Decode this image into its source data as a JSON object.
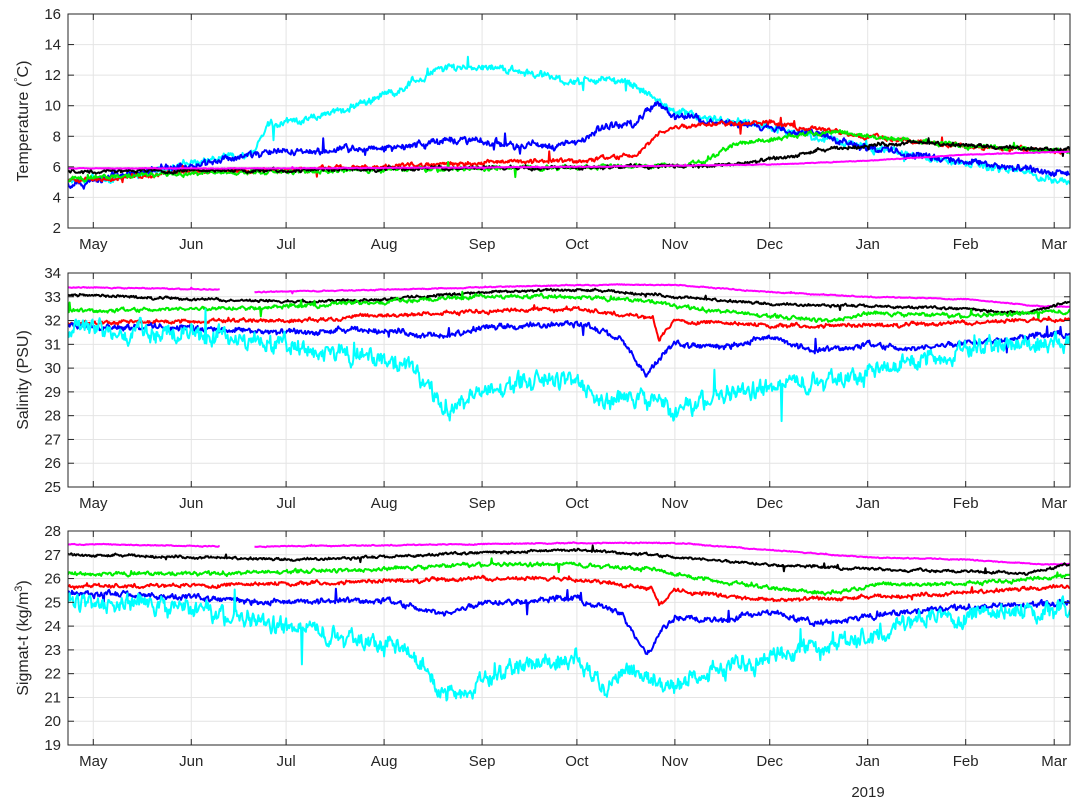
{
  "figure": {
    "year_label": "2019"
  },
  "time_axis": {
    "start": "2018-04-23",
    "end": "2019-03-06",
    "ticks": [
      {
        "date": "2018-05-01",
        "label": "May"
      },
      {
        "date": "2018-06-01",
        "label": "Jun"
      },
      {
        "date": "2018-07-01",
        "label": "Jul"
      },
      {
        "date": "2018-08-01",
        "label": "Aug"
      },
      {
        "date": "2018-09-01",
        "label": "Sep"
      },
      {
        "date": "2018-10-01",
        "label": "Oct"
      },
      {
        "date": "2018-11-01",
        "label": "Nov"
      },
      {
        "date": "2018-12-01",
        "label": "Dec"
      },
      {
        "date": "2019-01-01",
        "label": "Jan"
      },
      {
        "date": "2019-02-01",
        "label": "Feb"
      },
      {
        "date": "2019-03-01",
        "label": "Mar"
      }
    ]
  },
  "colors": {
    "magenta": "#ff00ff",
    "black": "#000000",
    "green": "#00ee00",
    "red": "#ff0000",
    "blue": "#0000ff",
    "cyan": "#00ffff"
  },
  "chart_data": [
    {
      "type": "line",
      "ylabel_text": "Temperature (",
      "ylabel_degree": "°",
      "ylabel_unit": "C)",
      "ylim": [
        2,
        16
      ],
      "yticks": [
        2,
        4,
        6,
        8,
        10,
        12,
        14,
        16
      ],
      "grid": true,
      "series": [
        {
          "color": "cyan",
          "noise": 0.35,
          "x": [
            "2018-04-23",
            "2018-05-15",
            "2018-06-01",
            "2018-06-20",
            "2018-06-25",
            "2018-07-10",
            "2018-07-25",
            "2018-08-05",
            "2018-08-20",
            "2018-09-01",
            "2018-09-15",
            "2018-10-01",
            "2018-10-10",
            "2018-10-20",
            "2018-11-01",
            "2018-11-15",
            "2018-12-01",
            "2018-12-15",
            "2019-01-01",
            "2019-01-15",
            "2019-02-01",
            "2019-02-15",
            "2019-03-06"
          ],
          "y": [
            5.0,
            5.4,
            6.3,
            6.8,
            8.8,
            9.2,
            10.2,
            11.0,
            12.5,
            12.6,
            12.2,
            11.5,
            11.8,
            11.3,
            9.5,
            9.0,
            8.6,
            8.0,
            7.3,
            6.8,
            6.2,
            5.8,
            5.0
          ]
        },
        {
          "color": "blue",
          "noise": 0.35,
          "x": [
            "2018-04-23",
            "2018-05-15",
            "2018-06-01",
            "2018-06-20",
            "2018-07-01",
            "2018-08-01",
            "2018-08-25",
            "2018-09-01",
            "2018-09-20",
            "2018-10-01",
            "2018-10-10",
            "2018-10-20",
            "2018-10-27",
            "2018-11-01",
            "2018-11-20",
            "2018-12-15",
            "2019-01-01",
            "2019-01-15",
            "2019-02-01",
            "2019-02-20",
            "2019-03-06"
          ],
          "y": [
            4.9,
            5.6,
            6.2,
            6.8,
            7.0,
            7.2,
            7.8,
            7.6,
            7.4,
            7.5,
            8.6,
            9.0,
            10.2,
            9.3,
            8.8,
            8.3,
            7.3,
            6.8,
            6.4,
            5.8,
            5.6
          ]
        },
        {
          "color": "red",
          "noise": 0.22,
          "x": [
            "2018-04-23",
            "2018-06-01",
            "2018-07-01",
            "2018-08-01",
            "2018-09-01",
            "2018-10-01",
            "2018-10-20",
            "2018-10-27",
            "2018-11-01",
            "2018-11-15",
            "2018-12-01",
            "2019-01-01",
            "2019-02-01",
            "2019-03-06"
          ],
          "y": [
            5.0,
            5.7,
            5.8,
            6.0,
            6.3,
            6.4,
            6.8,
            8.2,
            8.6,
            8.9,
            8.9,
            8.0,
            7.3,
            7.0
          ]
        },
        {
          "color": "green",
          "noise": 0.22,
          "x": [
            "2018-04-23",
            "2018-06-01",
            "2018-07-01",
            "2018-08-01",
            "2018-09-01",
            "2018-10-01",
            "2018-10-25",
            "2018-11-10",
            "2018-11-20",
            "2018-12-01",
            "2018-12-15",
            "2019-01-01",
            "2019-02-01",
            "2019-03-06"
          ],
          "y": [
            5.2,
            5.6,
            5.7,
            5.8,
            5.9,
            6.0,
            6.1,
            6.3,
            7.5,
            7.8,
            8.3,
            8.0,
            7.4,
            7.0
          ]
        },
        {
          "color": "black",
          "noise": 0.18,
          "x": [
            "2018-04-23",
            "2018-07-01",
            "2018-10-01",
            "2018-11-15",
            "2018-11-25",
            "2018-12-05",
            "2018-12-15",
            "2019-01-01",
            "2019-01-15",
            "2019-02-01",
            "2019-03-06"
          ],
          "y": [
            5.7,
            5.8,
            6.0,
            6.1,
            6.3,
            6.6,
            7.0,
            7.4,
            7.6,
            7.4,
            7.1
          ]
        },
        {
          "color": "magenta",
          "noise": 0.03,
          "x": [
            "2018-04-23",
            "2018-07-01",
            "2018-10-01",
            "2018-12-01",
            "2019-01-01",
            "2019-02-01",
            "2019-03-06"
          ],
          "y": [
            5.9,
            5.9,
            6.0,
            6.15,
            6.4,
            6.8,
            7.0
          ]
        }
      ]
    },
    {
      "type": "line",
      "ylabel_text": "Salinity (PSU)",
      "ylim": [
        25,
        34
      ],
      "yticks": [
        25,
        26,
        27,
        28,
        29,
        30,
        31,
        32,
        33,
        34
      ],
      "grid": true,
      "series": [
        {
          "color": "magenta",
          "noise": 0.03,
          "segments": [
            {
              "x": [
                "2018-04-23",
                "2018-05-20",
                "2018-06-10"
              ],
              "y": [
                33.4,
                33.35,
                33.3
              ]
            },
            {
              "x": [
                "2018-06-21",
                "2018-08-01",
                "2018-10-01",
                "2018-11-01",
                "2018-12-01",
                "2019-01-01",
                "2019-02-01",
                "2019-02-25",
                "2019-03-06"
              ],
              "y": [
                33.2,
                33.3,
                33.5,
                33.5,
                33.2,
                33.0,
                32.9,
                32.6,
                32.6
              ]
            }
          ]
        },
        {
          "color": "black",
          "noise": 0.08,
          "x": [
            "2018-04-23",
            "2018-06-01",
            "2018-07-01",
            "2018-08-01",
            "2018-09-01",
            "2018-10-01",
            "2018-10-25",
            "2018-11-01",
            "2018-11-20",
            "2018-12-01",
            "2019-01-01",
            "2019-02-01",
            "2019-02-20",
            "2019-03-06"
          ],
          "y": [
            33.1,
            32.9,
            32.8,
            32.9,
            33.2,
            33.3,
            33.1,
            33.0,
            32.8,
            32.7,
            32.6,
            32.5,
            32.3,
            32.8
          ]
        },
        {
          "color": "green",
          "noise": 0.12,
          "x": [
            "2018-04-23",
            "2018-06-01",
            "2018-07-01",
            "2018-08-01",
            "2018-09-01",
            "2018-10-01",
            "2018-10-25",
            "2018-11-01",
            "2018-12-01",
            "2018-12-20",
            "2019-01-01",
            "2019-02-01",
            "2019-03-06"
          ],
          "y": [
            32.4,
            32.5,
            32.6,
            32.8,
            33.0,
            33.0,
            32.8,
            32.6,
            32.2,
            32.0,
            32.3,
            32.2,
            32.4
          ]
        },
        {
          "color": "red",
          "noise": 0.12,
          "x": [
            "2018-04-23",
            "2018-06-01",
            "2018-07-01",
            "2018-08-01",
            "2018-09-01",
            "2018-10-01",
            "2018-10-25",
            "2018-10-27",
            "2018-11-01",
            "2018-12-01",
            "2019-01-01",
            "2019-02-01",
            "2019-03-06"
          ],
          "y": [
            31.9,
            32.0,
            32.0,
            32.2,
            32.4,
            32.5,
            32.1,
            31.2,
            32.0,
            31.8,
            31.8,
            31.9,
            32.1
          ]
        },
        {
          "color": "blue",
          "noise": 0.18,
          "x": [
            "2018-04-23",
            "2018-06-01",
            "2018-07-01",
            "2018-08-01",
            "2018-08-20",
            "2018-09-01",
            "2018-10-01",
            "2018-10-15",
            "2018-10-23",
            "2018-10-27",
            "2018-11-01",
            "2018-11-15",
            "2018-12-01",
            "2018-12-15",
            "2019-01-01",
            "2019-01-15",
            "2019-02-01",
            "2019-03-06"
          ],
          "y": [
            31.8,
            31.7,
            31.5,
            31.6,
            31.3,
            31.7,
            31.9,
            31.2,
            29.7,
            30.4,
            31.0,
            30.9,
            31.3,
            30.7,
            31.0,
            30.8,
            31.1,
            31.5
          ]
        },
        {
          "color": "cyan",
          "noise": 0.55,
          "x": [
            "2018-04-23",
            "2018-05-20",
            "2018-06-01",
            "2018-06-20",
            "2018-07-01",
            "2018-07-20",
            "2018-08-01",
            "2018-08-10",
            "2018-08-20",
            "2018-08-25",
            "2018-09-01",
            "2018-09-15",
            "2018-10-01",
            "2018-10-10",
            "2018-10-20",
            "2018-10-27",
            "2018-11-01",
            "2018-11-10",
            "2018-11-20",
            "2018-12-01",
            "2018-12-15",
            "2019-01-01",
            "2019-01-15",
            "2019-02-01",
            "2019-02-15",
            "2019-03-06"
          ],
          "y": [
            31.7,
            31.5,
            31.4,
            31.1,
            30.9,
            30.6,
            30.3,
            30.0,
            28.3,
            28.6,
            29.0,
            29.5,
            29.6,
            28.5,
            28.8,
            28.6,
            28.0,
            28.7,
            29.0,
            29.2,
            29.5,
            29.8,
            30.4,
            30.8,
            31.0,
            31.2
          ]
        }
      ]
    },
    {
      "type": "line",
      "ylabel_text": "Sigmat-t (kg/m",
      "ylabel_sup": "3",
      "ylabel_close": ")",
      "ylim": [
        19,
        28
      ],
      "yticks": [
        19,
        20,
        21,
        22,
        23,
        24,
        25,
        26,
        27,
        28
      ],
      "grid": true,
      "series": [
        {
          "color": "magenta",
          "noise": 0.03,
          "segments": [
            {
              "x": [
                "2018-04-23",
                "2018-05-20",
                "2018-06-10"
              ],
              "y": [
                27.45,
                27.4,
                27.35
              ]
            },
            {
              "x": [
                "2018-06-21",
                "2018-08-01",
                "2018-10-01",
                "2018-11-01",
                "2018-12-01",
                "2019-01-01",
                "2019-02-01",
                "2019-02-25",
                "2019-03-06"
              ],
              "y": [
                27.35,
                27.4,
                27.5,
                27.5,
                27.2,
                26.9,
                26.8,
                26.6,
                26.6
              ]
            }
          ]
        },
        {
          "color": "black",
          "noise": 0.08,
          "x": [
            "2018-04-23",
            "2018-06-01",
            "2018-07-01",
            "2018-08-01",
            "2018-09-01",
            "2018-10-01",
            "2018-10-25",
            "2018-11-01",
            "2018-12-01",
            "2019-01-01",
            "2019-02-01",
            "2019-02-20",
            "2019-03-06"
          ],
          "y": [
            27.0,
            26.9,
            26.8,
            26.9,
            27.1,
            27.2,
            27.0,
            26.9,
            26.6,
            26.4,
            26.3,
            26.2,
            26.6
          ]
        },
        {
          "color": "green",
          "noise": 0.12,
          "x": [
            "2018-04-23",
            "2018-06-01",
            "2018-07-01",
            "2018-08-01",
            "2018-09-01",
            "2018-10-01",
            "2018-10-25",
            "2018-11-01",
            "2018-12-01",
            "2018-12-20",
            "2019-01-01",
            "2019-02-01",
            "2019-03-06"
          ],
          "y": [
            26.2,
            26.2,
            26.3,
            26.4,
            26.6,
            26.6,
            26.4,
            26.2,
            25.6,
            25.4,
            25.7,
            25.8,
            26.1
          ]
        },
        {
          "color": "red",
          "noise": 0.12,
          "x": [
            "2018-04-23",
            "2018-06-01",
            "2018-07-01",
            "2018-08-01",
            "2018-09-01",
            "2018-10-01",
            "2018-10-25",
            "2018-10-27",
            "2018-11-01",
            "2018-12-01",
            "2019-01-01",
            "2019-02-01",
            "2019-03-06"
          ],
          "y": [
            25.7,
            25.7,
            25.8,
            25.9,
            26.0,
            26.0,
            25.6,
            24.9,
            25.5,
            25.1,
            25.2,
            25.4,
            25.7
          ]
        },
        {
          "color": "blue",
          "noise": 0.18,
          "x": [
            "2018-04-23",
            "2018-06-01",
            "2018-07-01",
            "2018-08-01",
            "2018-08-20",
            "2018-09-01",
            "2018-10-01",
            "2018-10-15",
            "2018-10-23",
            "2018-10-27",
            "2018-11-01",
            "2018-11-15",
            "2018-12-01",
            "2018-12-15",
            "2019-01-01",
            "2019-01-15",
            "2019-02-01",
            "2019-03-06"
          ],
          "y": [
            25.4,
            25.2,
            25.0,
            25.1,
            24.5,
            25.0,
            25.2,
            24.5,
            22.9,
            23.6,
            24.4,
            24.2,
            24.6,
            24.1,
            24.4,
            24.6,
            24.8,
            25.0
          ]
        },
        {
          "color": "cyan",
          "noise": 0.55,
          "x": [
            "2018-04-23",
            "2018-05-20",
            "2018-06-01",
            "2018-06-20",
            "2018-07-01",
            "2018-07-20",
            "2018-08-01",
            "2018-08-10",
            "2018-08-20",
            "2018-08-25",
            "2018-09-01",
            "2018-09-15",
            "2018-10-01",
            "2018-10-10",
            "2018-10-20",
            "2018-10-27",
            "2018-11-01",
            "2018-11-10",
            "2018-11-20",
            "2018-12-01",
            "2018-12-15",
            "2019-01-01",
            "2019-01-15",
            "2019-02-01",
            "2019-02-15",
            "2019-03-06"
          ],
          "y": [
            25.1,
            24.9,
            24.7,
            24.3,
            24.0,
            23.6,
            23.3,
            22.9,
            21.2,
            21.4,
            21.7,
            22.4,
            22.7,
            21.6,
            21.9,
            21.6,
            21.5,
            22.0,
            22.4,
            22.7,
            23.1,
            23.6,
            24.2,
            24.5,
            24.6,
            24.8
          ]
        }
      ]
    }
  ]
}
